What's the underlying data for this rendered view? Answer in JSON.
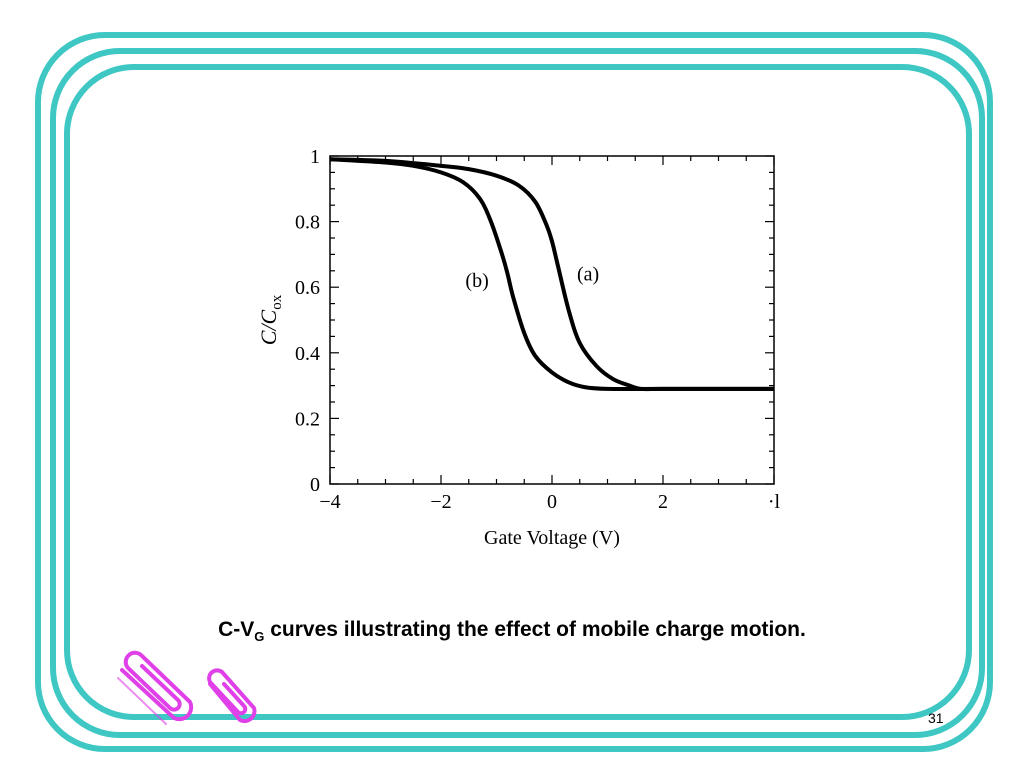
{
  "slide": {
    "caption_main": "C-V",
    "caption_sub": "G",
    "caption_rest": " curves illustrating the effect of mobile charge motion.",
    "page_number": "31",
    "frame_color": "#3ec7c3",
    "clip_color": "#e040e8",
    "clip_icon": "paperclip-icon"
  },
  "chart_data": {
    "type": "line",
    "title": "",
    "xlabel": "Gate Voltage (V)",
    "ylabel_main": "C/C",
    "ylabel_sub": "ox",
    "xlim": [
      -4,
      4
    ],
    "ylim": [
      0,
      1
    ],
    "x_ticks": [
      -4,
      -2,
      0,
      2,
      4
    ],
    "x_tick_labels": [
      "−4",
      "−2",
      "0",
      "2",
      "·l"
    ],
    "y_ticks": [
      0,
      0.2,
      0.4,
      0.6,
      0.8,
      1
    ],
    "y_tick_labels": [
      "0",
      "0.2",
      "0.4",
      "0.6",
      "0.8",
      "1"
    ],
    "grid": false,
    "series": [
      {
        "name": "(a)",
        "x": [
          -4,
          -3,
          -2,
          -1.5,
          -1,
          -0.6,
          -0.3,
          -0.1,
          0,
          0.1,
          0.3,
          0.5,
          0.8,
          1.1,
          1.4,
          1.6,
          2,
          3,
          4
        ],
        "y": [
          0.99,
          0.985,
          0.97,
          0.96,
          0.94,
          0.91,
          0.86,
          0.79,
          0.74,
          0.67,
          0.53,
          0.43,
          0.36,
          0.32,
          0.3,
          0.29,
          0.29,
          0.29,
          0.29
        ]
      },
      {
        "name": "(b)",
        "x": [
          -4,
          -3,
          -2.5,
          -2,
          -1.6,
          -1.3,
          -1.1,
          -0.9,
          -0.8,
          -0.7,
          -0.5,
          -0.3,
          0,
          0.3,
          0.6,
          1,
          2,
          4
        ],
        "y": [
          0.99,
          0.98,
          0.97,
          0.95,
          0.92,
          0.87,
          0.8,
          0.7,
          0.64,
          0.57,
          0.46,
          0.39,
          0.34,
          0.31,
          0.295,
          0.29,
          0.29,
          0.29
        ]
      }
    ],
    "annotations": [
      {
        "text": "(a)",
        "x": 0.65,
        "y": 0.62
      },
      {
        "text": "(b)",
        "x": -1.35,
        "y": 0.6
      }
    ]
  }
}
